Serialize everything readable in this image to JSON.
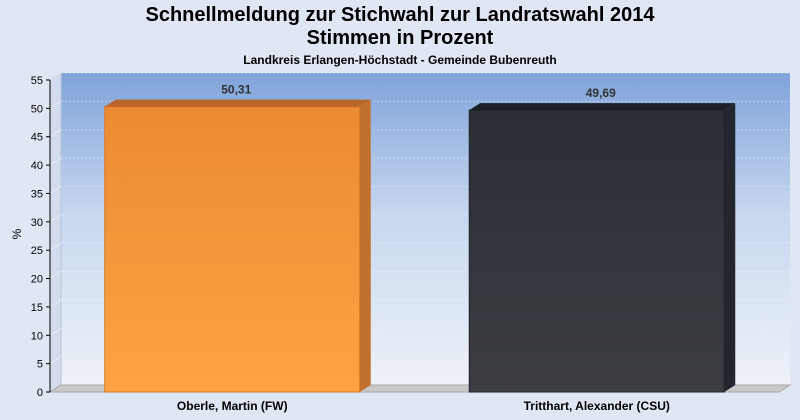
{
  "chart_data": {
    "type": "bar",
    "title": "Schnellmeldung zur Stichwahl zur Landratswahl 2014",
    "subtitle": "Stimmen in Prozent",
    "subsubtitle": "Landkreis Erlangen-Höchstadt - Gemeinde Bubenreuth",
    "ylabel": "%",
    "xlabel": "",
    "ylim": [
      0,
      55
    ],
    "yticks": [
      0,
      5,
      10,
      15,
      20,
      25,
      30,
      35,
      40,
      45,
      50,
      55
    ],
    "categories": [
      "Oberle, Martin (FW)",
      "Tritthart, Alexander (CSU)"
    ],
    "values": [
      50.31,
      49.69
    ],
    "value_labels": [
      "50,31",
      "49,69"
    ],
    "colors": [
      "#f5912e",
      "#30343d"
    ],
    "grid": true,
    "legend": "none"
  }
}
